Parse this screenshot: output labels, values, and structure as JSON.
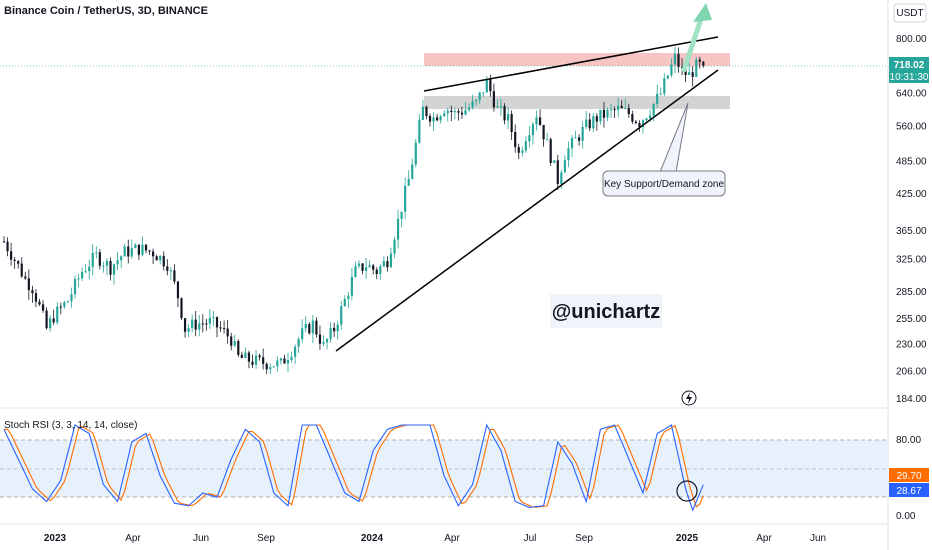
{
  "header": {
    "title": "Binance Coin / TetherUS, 3D, BINANCE",
    "currency": "USDT"
  },
  "price_badge": {
    "price": "718.02",
    "countdown": "10:31:30"
  },
  "annotations": {
    "callout": "Key Support/Demand zone",
    "watermark": "@unichartz"
  },
  "rsi_header": "Stoch RSI (3, 3, 14, 14, close)",
  "rsi_badges": {
    "k": "29.70",
    "d": "28.67"
  },
  "colors": {
    "up": "#26a69a",
    "down": "#131722",
    "resistance_zone": "#f4a6a6",
    "support_zone": "#c8c8c8",
    "rsi_k": "#2962ff",
    "rsi_d": "#ff6d00",
    "rsi_band": "#e3effb",
    "arrow": "#7fd6b0"
  },
  "chart_data": [
    {
      "type": "candlestick",
      "title": "Binance Coin / TetherUS, 3D, BINANCE",
      "y_axis": {
        "scale": "log",
        "tick_labels": [
          "800.00",
          "640.00",
          "560.00",
          "485.00",
          "425.00",
          "365.00",
          "325.00",
          "285.00",
          "255.00",
          "230.00",
          "206.00",
          "184.00"
        ]
      },
      "x_axis": {
        "tick_labels": [
          "2023",
          "Apr",
          "Jun",
          "Sep",
          "2024",
          "Apr",
          "Jul",
          "Sep",
          "2025",
          "Apr",
          "Jun"
        ]
      },
      "last_price": 718.02,
      "price_path": [
        [
          0,
          350
        ],
        [
          3,
          325
        ],
        [
          6,
          300
        ],
        [
          8,
          290
        ],
        [
          10,
          268
        ],
        [
          12,
          245
        ],
        [
          14,
          258
        ],
        [
          18,
          275
        ],
        [
          22,
          310
        ],
        [
          26,
          330
        ],
        [
          30,
          315
        ],
        [
          34,
          335
        ],
        [
          38,
          340
        ],
        [
          42,
          335
        ],
        [
          46,
          320
        ],
        [
          49,
          280
        ],
        [
          51,
          245
        ],
        [
          54,
          250
        ],
        [
          58,
          252
        ],
        [
          61,
          245
        ],
        [
          64,
          235
        ],
        [
          66,
          218
        ],
        [
          70,
          215
        ],
        [
          74,
          213
        ],
        [
          78,
          212
        ],
        [
          81,
          225
        ],
        [
          84,
          240
        ],
        [
          87,
          250
        ],
        [
          90,
          228
        ],
        [
          93,
          245
        ],
        [
          96,
          275
        ],
        [
          99,
          310
        ],
        [
          102,
          318
        ],
        [
          105,
          310
        ],
        [
          108,
          325
        ],
        [
          111,
          380
        ],
        [
          114,
          450
        ],
        [
          116,
          520
        ],
        [
          118,
          600
        ],
        [
          121,
          580
        ],
        [
          124,
          605
        ],
        [
          127,
          590
        ],
        [
          130,
          600
        ],
        [
          133,
          615
        ],
        [
          136,
          670
        ],
        [
          139,
          600
        ],
        [
          142,
          575
        ],
        [
          145,
          500
        ],
        [
          147,
          540
        ],
        [
          150,
          590
        ],
        [
          153,
          520
        ],
        [
          156,
          450
        ],
        [
          158,
          500
        ],
        [
          161,
          530
        ],
        [
          164,
          560
        ],
        [
          167,
          580
        ],
        [
          170,
          590
        ],
        [
          173,
          600
        ],
        [
          176,
          590
        ],
        [
          179,
          570
        ],
        [
          182,
          600
        ],
        [
          185,
          640
        ],
        [
          187,
          690
        ],
        [
          189,
          740
        ],
        [
          191,
          700
        ],
        [
          193,
          690
        ],
        [
          195,
          715
        ],
        [
          197,
          718.02
        ]
      ],
      "trendlines": [
        {
          "name": "upper",
          "from": [
            138,
            650
          ],
          "to": [
            218,
            800
          ]
        },
        {
          "name": "lower",
          "from": [
            84,
            225
          ],
          "to": [
            218,
            710
          ]
        }
      ],
      "zones": [
        {
          "name": "resistance",
          "low": 700,
          "high": 725
        },
        {
          "name": "support",
          "low": 605,
          "high": 630
        }
      ]
    },
    {
      "type": "line",
      "title": "Stoch RSI (3, 3, 14, 14, close)",
      "y_axis": {
        "tick_labels": [
          "80.00",
          "0.00"
        ],
        "band": [
          20,
          80
        ]
      },
      "series": [
        {
          "name": "K",
          "last_value": 29.7
        },
        {
          "name": "D",
          "last_value": 28.67
        }
      ],
      "k_path": [
        [
          0,
          95
        ],
        [
          4,
          60
        ],
        [
          8,
          25
        ],
        [
          12,
          10
        ],
        [
          16,
          35
        ],
        [
          20,
          100
        ],
        [
          24,
          90
        ],
        [
          28,
          30
        ],
        [
          32,
          10
        ],
        [
          36,
          80
        ],
        [
          40,
          90
        ],
        [
          44,
          40
        ],
        [
          48,
          8
        ],
        [
          52,
          5
        ],
        [
          56,
          20
        ],
        [
          60,
          15
        ],
        [
          64,
          60
        ],
        [
          68,
          95
        ],
        [
          72,
          80
        ],
        [
          76,
          20
        ],
        [
          80,
          5
        ],
        [
          84,
          100
        ],
        [
          88,
          100
        ],
        [
          92,
          60
        ],
        [
          96,
          20
        ],
        [
          100,
          10
        ],
        [
          104,
          70
        ],
        [
          108,
          95
        ],
        [
          112,
          100
        ],
        [
          116,
          100
        ],
        [
          120,
          100
        ],
        [
          124,
          40
        ],
        [
          128,
          5
        ],
        [
          132,
          30
        ],
        [
          136,
          100
        ],
        [
          140,
          70
        ],
        [
          144,
          10
        ],
        [
          148,
          3
        ],
        [
          152,
          5
        ],
        [
          156,
          80
        ],
        [
          160,
          55
        ],
        [
          164,
          10
        ],
        [
          168,
          95
        ],
        [
          172,
          100
        ],
        [
          176,
          60
        ],
        [
          180,
          20
        ],
        [
          184,
          90
        ],
        [
          188,
          100
        ],
        [
          192,
          25
        ],
        [
          194,
          0
        ],
        [
          197,
          29.7
        ]
      ]
    }
  ]
}
